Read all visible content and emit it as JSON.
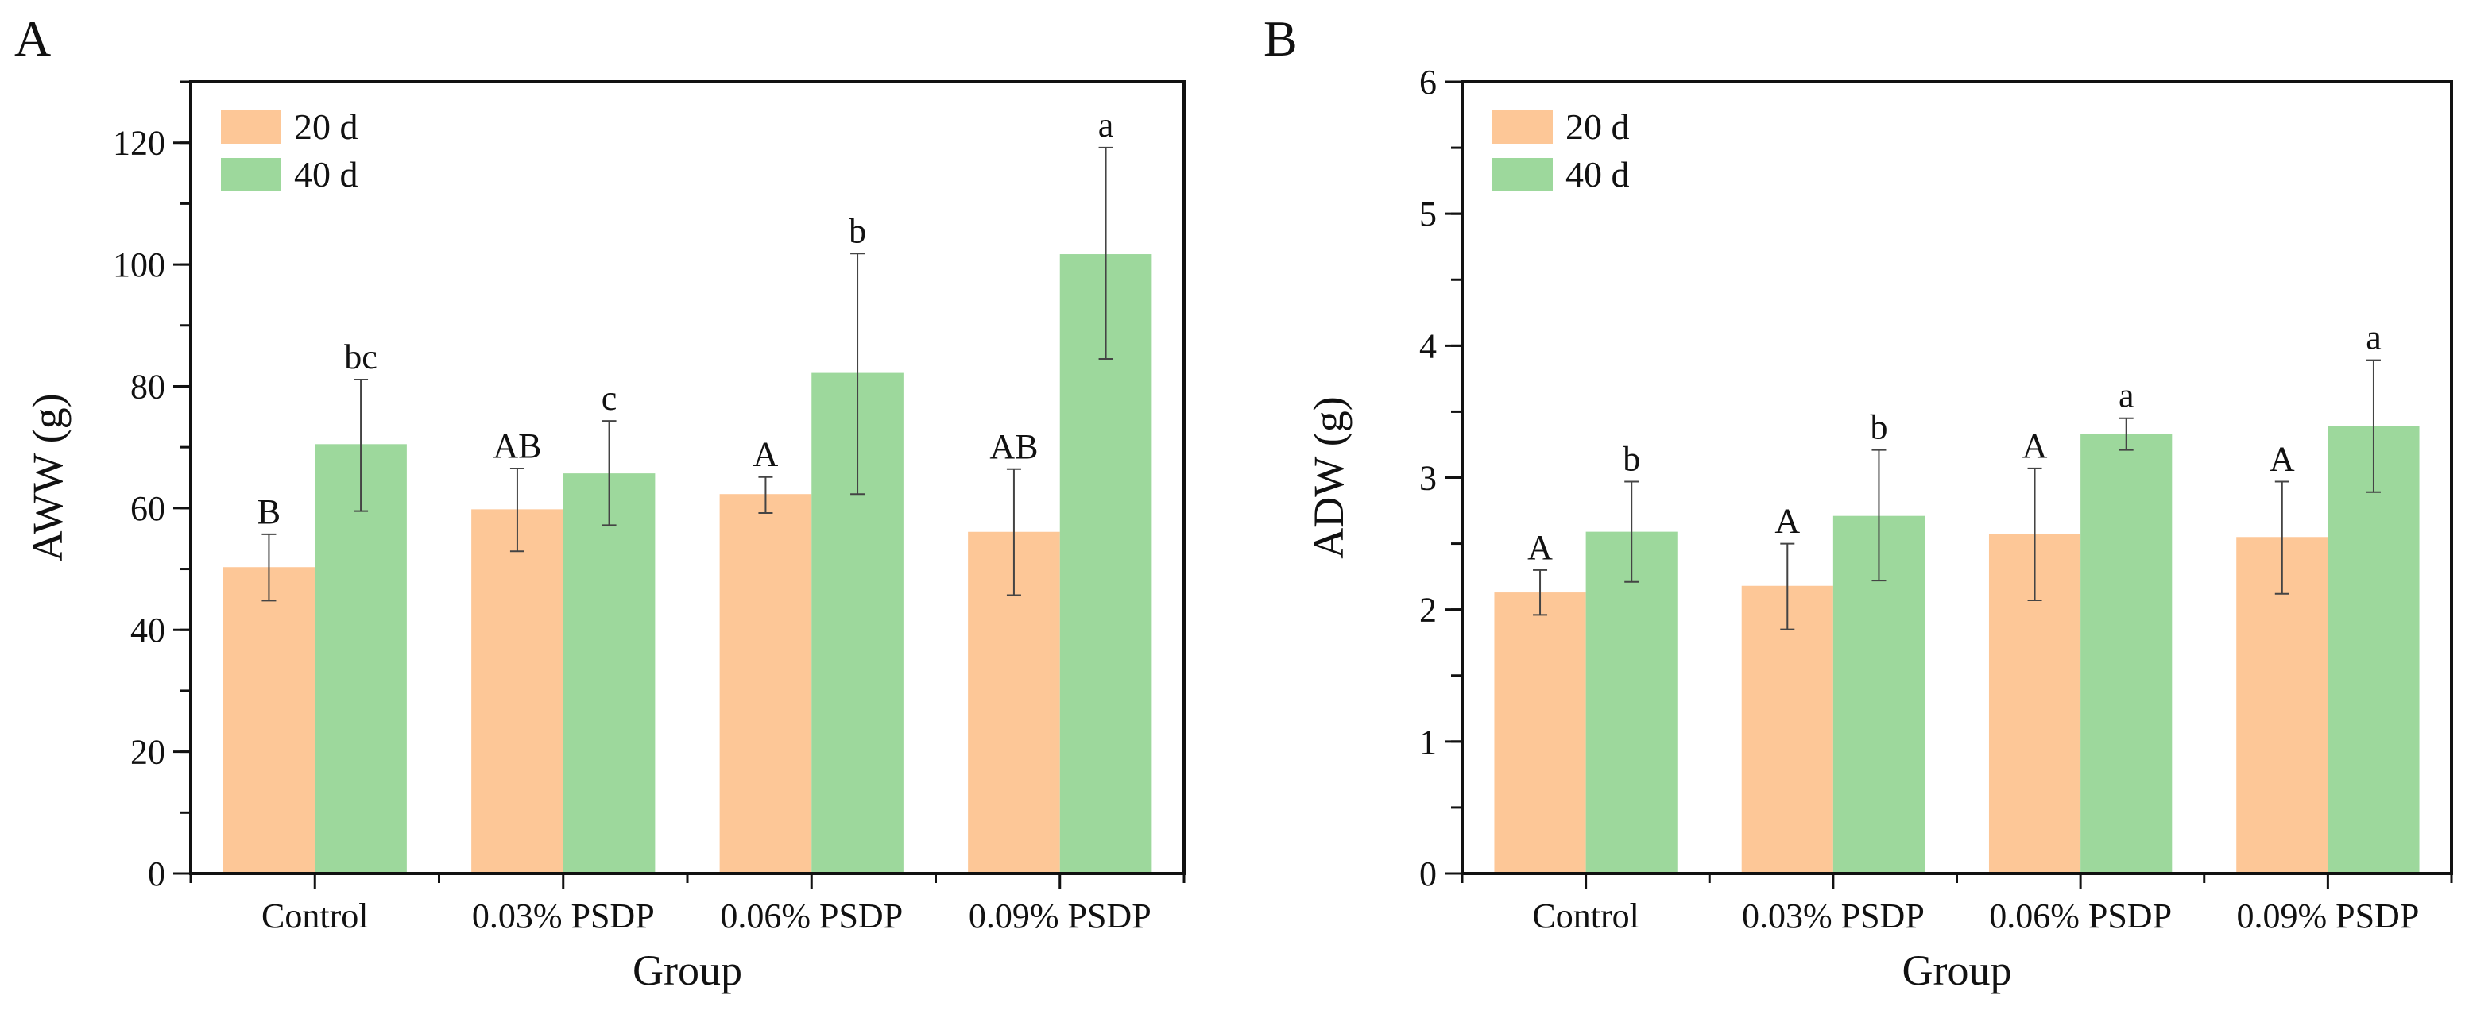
{
  "colors": {
    "series_20d": "#fdc797",
    "series_40d": "#9dd89c",
    "axis": "#111111",
    "error": "#444444"
  },
  "chart_data": [
    {
      "panel_label": "A",
      "type": "bar",
      "title": "",
      "xlabel": "Group",
      "ylabel": "AWW (g)",
      "ylim": [
        0,
        130
      ],
      "yticks": [
        0,
        20,
        40,
        60,
        80,
        100,
        120
      ],
      "ytick_labels": [
        "0",
        "20",
        "40",
        "60",
        "80",
        "100",
        "120"
      ],
      "minor_step": 10,
      "legend_position": "top-left",
      "categories": [
        "Control",
        "0.03% PSDP",
        "0.06% PSDP",
        "0.09% PSDP"
      ],
      "series": [
        {
          "name": "20 d",
          "values": [
            50.3,
            59.8,
            62.3,
            56.1
          ],
          "err_low": [
            44.8,
            52.9,
            59.2,
            45.7
          ],
          "err_high": [
            55.7,
            66.5,
            65.1,
            66.4
          ],
          "letters": [
            "B",
            "AB",
            "A",
            "AB"
          ]
        },
        {
          "name": "40 d",
          "values": [
            70.5,
            65.7,
            82.2,
            101.7
          ],
          "err_low": [
            59.5,
            57.2,
            62.3,
            84.5
          ],
          "err_high": [
            81.1,
            74.3,
            101.8,
            119.2
          ],
          "letters": [
            "bc",
            "c",
            "b",
            "a"
          ]
        }
      ]
    },
    {
      "panel_label": "B",
      "type": "bar",
      "title": "",
      "xlabel": "Group",
      "ylabel": "ADW (g)",
      "ylim": [
        0,
        6
      ],
      "yticks": [
        0,
        1,
        2,
        3,
        4,
        5,
        6
      ],
      "ytick_labels": [
        "0",
        "1",
        "2",
        "3",
        "4",
        "5",
        "6"
      ],
      "minor_step": 0.5,
      "legend_position": "top-left",
      "categories": [
        "Control",
        "0.03% PSDP",
        "0.06% PSDP",
        "0.09% PSDP"
      ],
      "series": [
        {
          "name": "20 d",
          "values": [
            2.13,
            2.18,
            2.57,
            2.55
          ],
          "err_low": [
            1.96,
            1.85,
            2.07,
            2.12
          ],
          "err_high": [
            2.3,
            2.5,
            3.07,
            2.97
          ],
          "letters": [
            "A",
            "A",
            "A",
            "A"
          ]
        },
        {
          "name": "40 d",
          "values": [
            2.59,
            2.71,
            3.33,
            3.39
          ],
          "err_low": [
            2.21,
            2.22,
            3.21,
            2.89
          ],
          "err_high": [
            2.97,
            3.21,
            3.45,
            3.89
          ],
          "letters": [
            "b",
            "b",
            "a",
            "a"
          ]
        }
      ]
    }
  ]
}
